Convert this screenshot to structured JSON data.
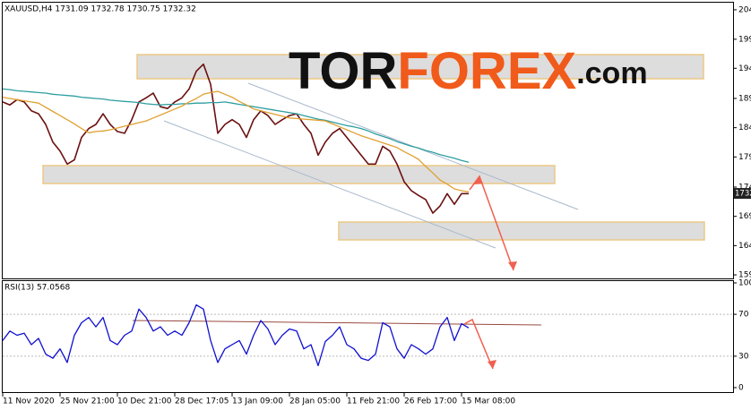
{
  "chart_data": [
    {
      "type": "line",
      "title": "XAUUSD,H4  1731.09 1732.78 1730.75 1732.32",
      "watermark": [
        "TOR",
        "FOREX",
        ".com"
      ],
      "x": [
        0,
        1,
        2,
        3,
        4,
        5,
        6,
        7,
        8,
        9,
        10,
        11,
        12,
        13,
        14,
        15,
        16,
        17,
        18,
        19,
        20,
        21,
        22,
        23,
        24,
        25,
        26,
        27,
        28,
        29,
        30,
        31,
        32,
        33,
        34,
        35,
        36,
        37,
        38,
        39,
        40,
        41,
        42,
        43,
        44,
        45,
        46,
        47,
        48,
        49,
        50,
        51,
        52,
        53,
        54,
        55,
        56,
        57,
        58,
        59,
        60,
        61,
        62,
        63,
        64,
        65
      ],
      "xlim": [
        0,
        102
      ],
      "ylim": [
        1585.5,
        2055
      ],
      "yticks": [
        {
          "value": 2043,
          "label": "2043.00"
        },
        {
          "value": 1993.15,
          "label": "1993.15"
        },
        {
          "value": 1944,
          "label": "1944.00"
        },
        {
          "value": 1893,
          "label": "1893.00"
        },
        {
          "value": 1843.5,
          "label": "1843.50"
        },
        {
          "value": 1794,
          "label": "1794.00"
        },
        {
          "value": 1743,
          "label": "1743.00"
        },
        {
          "value": 1693.5,
          "label": "1693.50"
        },
        {
          "value": 1644,
          "label": "1644.00"
        },
        {
          "value": 1594.5,
          "label": "1594.50"
        }
      ],
      "last_value": 1732.32,
      "series": [
        {
          "name": "XAUUSD",
          "color": "#6b1010",
          "values": [
            1887,
            1882,
            1891,
            1887,
            1872,
            1867,
            1849,
            1819,
            1804,
            1782,
            1789,
            1827,
            1842,
            1849,
            1867,
            1849,
            1837,
            1834,
            1857,
            1887,
            1894,
            1902,
            1879,
            1876,
            1887,
            1894,
            1909,
            1939,
            1951,
            1917,
            1834,
            1849,
            1857,
            1849,
            1827,
            1857,
            1872,
            1864,
            1849,
            1857,
            1864,
            1867,
            1849,
            1834,
            1797,
            1819,
            1834,
            1842,
            1827,
            1812,
            1797,
            1782,
            1782,
            1812,
            1804,
            1782,
            1752,
            1737,
            1729,
            1722,
            1699,
            1711,
            1732,
            1714,
            1732,
            1732
          ]
        },
        {
          "name": "MA slow",
          "color": "#2e9ea0",
          "values": [
            1909,
            1908,
            1906,
            1905,
            1904,
            1903,
            1902,
            1900,
            1899,
            1898,
            1897,
            1895,
            1894,
            1893,
            1892,
            1890,
            1889,
            1888,
            1887,
            1886,
            1884,
            1883,
            1882,
            1883,
            1883,
            1884,
            1884,
            1885,
            1885,
            1886,
            1886,
            1887,
            1885,
            1883,
            1881,
            1879,
            1877,
            1875,
            1873,
            1871,
            1869,
            1867,
            1864,
            1861,
            1858,
            1856,
            1853,
            1850,
            1847,
            1845,
            1842,
            1838,
            1833,
            1829,
            1825,
            1820,
            1816,
            1812,
            1809,
            1805,
            1802,
            1798,
            1795,
            1792,
            1788,
            1785
          ]
        },
        {
          "name": "MA fast",
          "color": "#e0a030",
          "values": [
            1895,
            1893,
            1891,
            1889,
            1887,
            1885,
            1878,
            1871,
            1864,
            1857,
            1850,
            1842,
            1835,
            1837,
            1838,
            1840,
            1843,
            1846,
            1849,
            1852,
            1855,
            1860,
            1865,
            1870,
            1875,
            1880,
            1887,
            1893,
            1900,
            1903,
            1905,
            1900,
            1895,
            1888,
            1882,
            1875,
            1872,
            1869,
            1866,
            1863,
            1860,
            1859,
            1858,
            1857,
            1856,
            1855,
            1850,
            1845,
            1840,
            1835,
            1830,
            1826,
            1822,
            1818,
            1814,
            1810,
            1803,
            1797,
            1790,
            1778,
            1767,
            1755,
            1748,
            1740,
            1737,
            1735
          ]
        }
      ]
    },
    {
      "type": "line",
      "title": "RSI(13) 57.0568",
      "x": [
        0,
        1,
        2,
        3,
        4,
        5,
        6,
        7,
        8,
        9,
        10,
        11,
        12,
        13,
        14,
        15,
        16,
        17,
        18,
        19,
        20,
        21,
        22,
        23,
        24,
        25,
        26,
        27,
        28,
        29,
        30,
        31,
        32,
        33,
        34,
        35,
        36,
        37,
        38,
        39,
        40,
        41,
        42,
        43,
        44,
        45,
        46,
        47,
        48,
        49,
        50,
        51,
        52,
        53,
        54,
        55,
        56,
        57,
        58,
        59,
        60,
        61,
        62,
        63,
        64,
        65
      ],
      "xlim": [
        0,
        102
      ],
      "xticks": [
        {
          "value": 0,
          "label": "11 Nov 2020"
        },
        {
          "value": 8,
          "label": "25 Nov 21:00"
        },
        {
          "value": 16,
          "label": "10 Dec 21:00"
        },
        {
          "value": 24,
          "label": "28 Dec 17:05"
        },
        {
          "value": 32,
          "label": "13 Jan 09:00"
        },
        {
          "value": 40,
          "label": "28 Jan 05:00"
        },
        {
          "value": 48,
          "label": "11 Feb 21:00"
        },
        {
          "value": 56,
          "label": "26 Feb 17:00"
        },
        {
          "value": 64,
          "label": "15 Mar 08:00"
        }
      ],
      "ylim": [
        0,
        100
      ],
      "yticks": [
        100,
        70,
        30,
        0
      ],
      "series": [
        {
          "name": "RSI",
          "color": "#1010d0",
          "values": [
            45,
            54,
            50,
            52,
            41,
            47,
            32,
            28,
            37,
            24,
            50,
            62,
            67,
            58,
            67,
            45,
            41,
            50,
            54,
            75,
            67,
            54,
            58,
            50,
            54,
            50,
            62,
            79,
            75,
            45,
            24,
            37,
            41,
            45,
            32,
            50,
            64,
            56,
            41,
            50,
            56,
            54,
            37,
            41,
            21,
            44,
            50,
            58,
            41,
            37,
            28,
            26,
            32,
            62,
            58,
            37,
            28,
            41,
            37,
            32,
            37,
            58,
            67,
            45,
            61,
            57
          ]
        }
      ]
    }
  ]
}
